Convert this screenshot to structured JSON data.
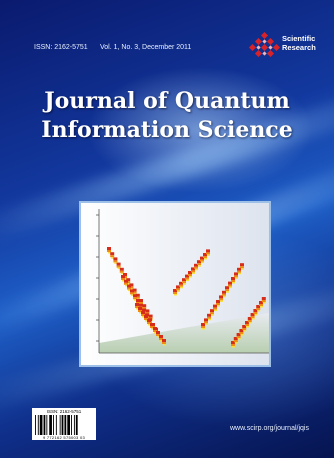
{
  "cover": {
    "issn_header": "ISSN: 2162-5751",
    "volume_info": "Vol. 1, No. 3, December 2011",
    "publisher_line1": "Scientific",
    "publisher_line2": "Research",
    "title_line1": "Journal of Quantum",
    "title_line2": "Information Science",
    "url": "www.scirp.org/journal/jqis",
    "barcode_issn": "ISSN: 2162-5751",
    "barcode_number": "9 772162 575003   03",
    "colors": {
      "background_dark": "#0a1a6e",
      "background_light": "#1e5fc8",
      "logo_red": "#d8222a",
      "chart_bar_red": "#d62d1a",
      "chart_bar_orange": "#f08a12",
      "chart_bar_yellow": "#f7e13a"
    }
  }
}
